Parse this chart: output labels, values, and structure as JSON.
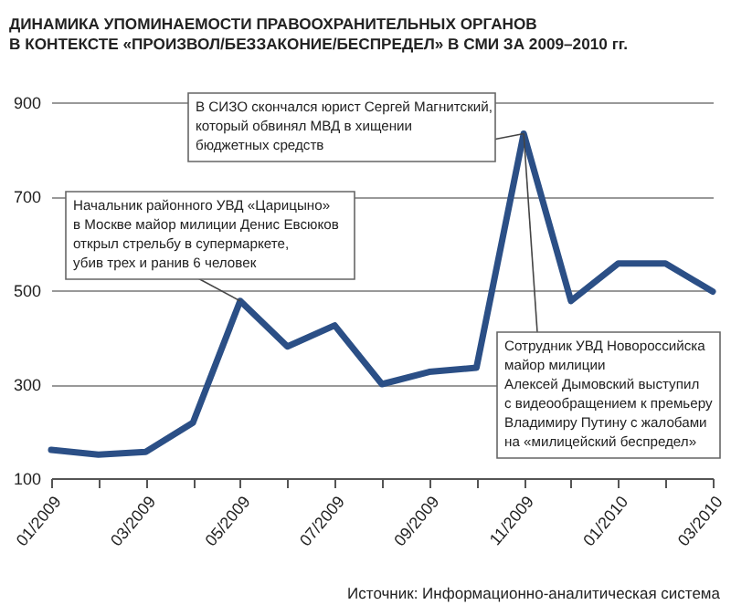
{
  "chart_data": {
    "type": "line",
    "title": "ДИНАМИКА УПОМИНАЕМОСТИ ПРАВООХРАНИТЕЛЬНЫХ ОРГАНОВ\nВ КОНТЕКСТЕ «ПРОИЗВОЛ/БЕЗЗАКОНИЕ/БЕСПРЕДЕЛ» В СМИ ЗА 2009–2010 гг.",
    "categories": [
      "01/2009",
      null,
      "03/2009",
      null,
      "05/2009",
      null,
      "07/2009",
      null,
      "09/2009",
      null,
      "11/2009",
      null,
      "01/2010",
      null,
      "03/2010"
    ],
    "series": [
      {
        "color": "#2b4f86",
        "values": [
          160,
          150,
          156,
          218,
          477,
          380,
          425,
          300,
          326,
          335,
          833,
          477,
          557,
          557,
          497
        ]
      }
    ],
    "ylim": [
      100,
      900
    ],
    "yticks": [
      100,
      300,
      500,
      700,
      900
    ],
    "grid": "y",
    "annotations": [
      {
        "text": "В СИЗО скончался юрист Сергей Магнитский,\nкоторый обвинял МВД в хищении\nбюджетных средств",
        "x": "11/2009",
        "y": 833
      },
      {
        "text": "Начальник районного УВД «Царицыно»\nв Москве майор милиции Денис Евсюков\nоткрыл стрельбу в супермаркете,\nубив трех и ранив 6 человек",
        "x": "05/2009",
        "y": 477
      },
      {
        "text": "Сотрудник УВД Новороссийска\nмайор милиции\nАлексей Дымовский выступил\nс видеообращением к премьеру\nВладимиру Путину с жалобами\nна «милицейский беспредел»",
        "x": "11/2009",
        "y": 833
      },
      "Источник: Информационно-аналитическая система"
    ]
  }
}
